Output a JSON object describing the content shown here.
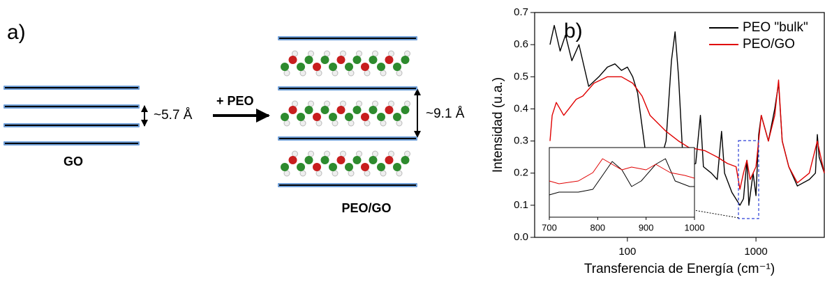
{
  "diagram": {
    "label": "a)",
    "spacing_go": "~5.7 Å",
    "arrow_label": "+ PEO",
    "spacing_peo": "~9.1 Å",
    "go_label": "GO",
    "peo_label": "PEO/GO"
  },
  "chart_data": {
    "type": "line",
    "label": "b)",
    "x_label": "Transferencia de Energía (cm⁻¹)",
    "y_label": "Intensidad (u.a.)",
    "xscale": "log",
    "xlim": [
      19,
      3400
    ],
    "xticks": [
      100,
      1000
    ],
    "ylim": [
      0,
      0.7
    ],
    "yticks": [
      {
        "value": 0,
        "label": "0.0"
      },
      0.1,
      0.2,
      0.3,
      0.4,
      0.5,
      0.6,
      0.7
    ],
    "legend": "upper right",
    "series": [
      {
        "name": "PEO \"bulk\"",
        "color": "#000000",
        "x": [
          25,
          27,
          30,
          33,
          37,
          42,
          50,
          60,
          70,
          80,
          90,
          100,
          110,
          120,
          140,
          150,
          170,
          200,
          220,
          235,
          250,
          270,
          300,
          340,
          370,
          390,
          450,
          500,
          540,
          570,
          650,
          750,
          800,
          850,
          880,
          950,
          1000,
          1050,
          1100,
          1250,
          1400,
          1500,
          1600,
          1800,
          2100,
          2600,
          2900,
          3000,
          3100,
          3400
        ],
        "values": [
          0.6,
          0.66,
          0.58,
          0.63,
          0.55,
          0.6,
          0.47,
          0.5,
          0.53,
          0.54,
          0.52,
          0.53,
          0.5,
          0.45,
          0.25,
          0.17,
          0.2,
          0.3,
          0.55,
          0.64,
          0.5,
          0.25,
          0.22,
          0.23,
          0.38,
          0.22,
          0.2,
          0.18,
          0.33,
          0.2,
          0.14,
          0.1,
          0.12,
          0.24,
          0.1,
          0.2,
          0.13,
          0.32,
          0.38,
          0.3,
          0.4,
          0.48,
          0.3,
          0.22,
          0.16,
          0.18,
          0.2,
          0.32,
          0.25,
          0.2
        ]
      },
      {
        "name": "PEO/GO",
        "color": "#e00000",
        "x": [
          25,
          26,
          28,
          32,
          35,
          40,
          45,
          55,
          70,
          90,
          110,
          130,
          150,
          200,
          250,
          300,
          400,
          500,
          600,
          700,
          750,
          800,
          850,
          900,
          950,
          1000,
          1100,
          1250,
          1400,
          1500,
          1600,
          1800,
          2100,
          2600,
          3000,
          3400
        ],
        "values": [
          0.3,
          0.38,
          0.42,
          0.38,
          0.4,
          0.43,
          0.44,
          0.48,
          0.5,
          0.5,
          0.48,
          0.44,
          0.38,
          0.33,
          0.3,
          0.28,
          0.27,
          0.25,
          0.23,
          0.22,
          0.15,
          0.2,
          0.24,
          0.18,
          0.2,
          0.22,
          0.38,
          0.3,
          0.38,
          0.49,
          0.3,
          0.22,
          0.17,
          0.2,
          0.3,
          0.2
        ]
      }
    ],
    "inset": {
      "type": "line",
      "xlim": [
        700,
        1000
      ],
      "xticks": [
        700,
        800,
        900,
        1000
      ],
      "ylim": [
        0.05,
        0.3
      ],
      "series": [
        {
          "color": "#000000",
          "x": [
            700,
            720,
            760,
            790,
            810,
            830,
            850,
            870,
            890,
            920,
            940,
            960,
            990,
            1000
          ],
          "values": [
            0.13,
            0.14,
            0.14,
            0.15,
            0.2,
            0.25,
            0.22,
            0.16,
            0.18,
            0.24,
            0.26,
            0.18,
            0.16,
            0.16
          ]
        },
        {
          "color": "#e00000",
          "x": [
            700,
            720,
            760,
            790,
            810,
            830,
            850,
            870,
            900,
            920,
            950,
            980,
            1000
          ],
          "values": [
            0.18,
            0.17,
            0.18,
            0.21,
            0.26,
            0.24,
            0.22,
            0.23,
            0.22,
            0.24,
            0.21,
            0.2,
            0.19
          ]
        }
      ]
    }
  }
}
